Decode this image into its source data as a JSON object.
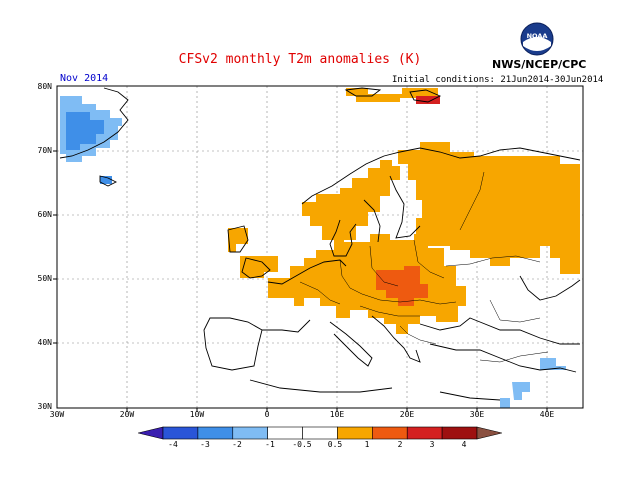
{
  "title": "CFSv2 monthly T2m anomalies (K)",
  "agency": "NWS/NCEP/CPC",
  "logo_text": "NOAA",
  "month_label": "Nov 2014",
  "initial_conditions": "Initial conditions: 21Jun2014-30Jun2014",
  "lat_labels": [
    "80N",
    "70N",
    "60N",
    "50N",
    "40N",
    "30N"
  ],
  "lon_labels": [
    "30W",
    "20W",
    "10W",
    "0",
    "10E",
    "20E",
    "30E",
    "40E"
  ],
  "colorbar": {
    "labels": [
      "-4",
      "-3",
      "-2",
      "-1",
      "-0.5",
      "0.5",
      "1",
      "2",
      "3",
      "4"
    ],
    "colors": [
      "#3a1fb0",
      "#2a55d8",
      "#3f8fe8",
      "#7fbcf4",
      "#ffffff",
      "#f7a600",
      "#ee5a10",
      "#d42020",
      "#9e1010",
      "#c9a090"
    ],
    "low_end_color": "#3a1fb0",
    "high_end_color": "#8a5040"
  },
  "anomaly_colors": {
    "warm_05_1": "#f7a600",
    "warm_1_2": "#ee5a10",
    "warm_2_3": "#d42020",
    "cold_05_1": "#7fbcf4",
    "cold_1_2": "#3f8fe8"
  }
}
